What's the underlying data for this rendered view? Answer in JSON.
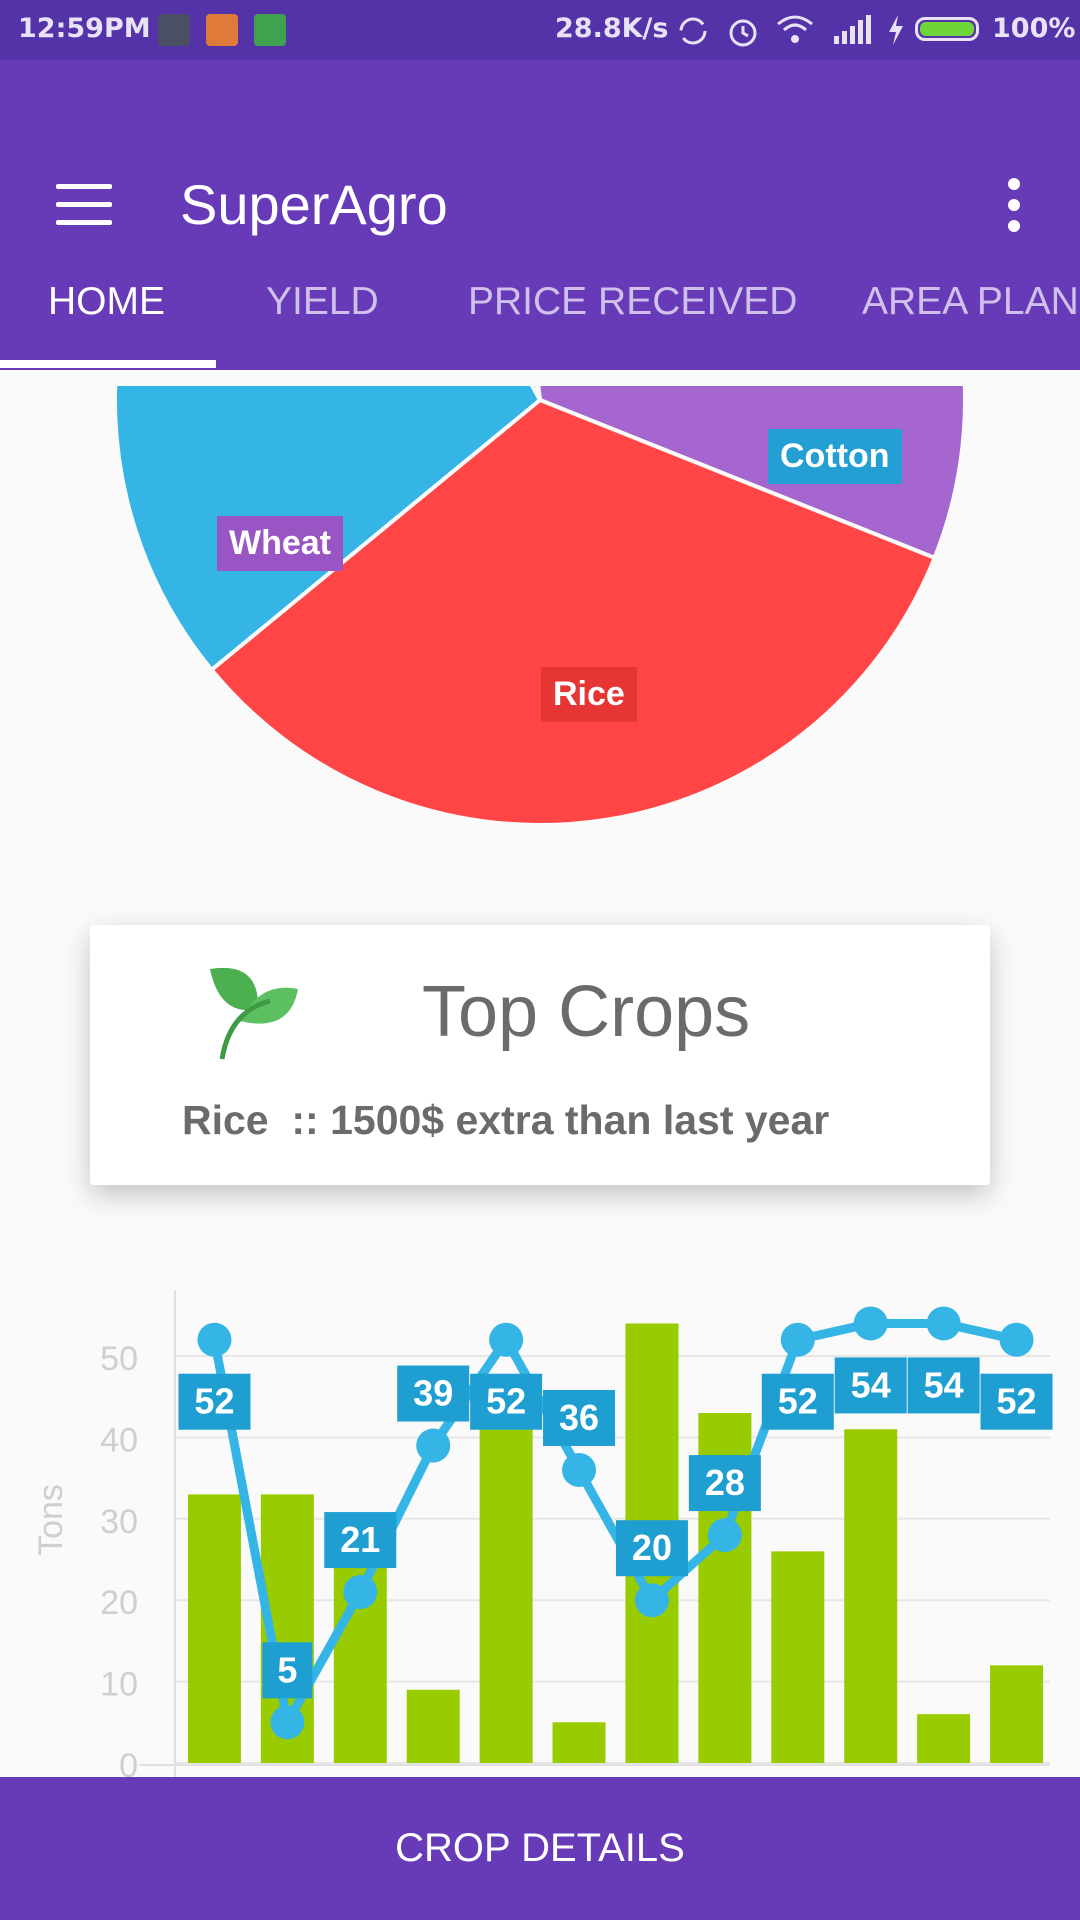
{
  "status_bar": {
    "time": "12:59PM",
    "speed": "28.8K/s",
    "battery": "100%",
    "battery_level": 1.0
  },
  "app_bar": {
    "title": "SuperAgro",
    "menu_icon": "hamburger-menu-icon",
    "more_icon": "more-vert-icon"
  },
  "tabs": [
    {
      "label": "HOME",
      "active": true
    },
    {
      "label": "YIELD",
      "active": false
    },
    {
      "label": "PRICE RECEIVED",
      "active": false
    },
    {
      "label": "AREA PLAN",
      "active": false
    }
  ],
  "top_crops_card": {
    "title": "Top Crops",
    "text": "Rice  :: 1500$ extra than last year",
    "icon": "leaf-icon"
  },
  "colors": {
    "primary": "#673ab7",
    "status_bar": "#5433a8",
    "wheat": "#a567cf",
    "rice": "#ff4545",
    "cotton": "#35b5e5",
    "bar": "#99cc00",
    "line": "#35b5e5"
  },
  "chart_data": [
    {
      "type": "pie",
      "slices": [
        {
          "label": "Wheat",
          "value": 33
        },
        {
          "label": "Rice",
          "value": 33
        },
        {
          "label": "Cotton",
          "value": 28
        },
        {
          "label": "",
          "value": 5
        },
        {
          "label": "",
          "value": 1
        }
      ]
    },
    {
      "type": "bar+line",
      "ylabel": "Tons",
      "ylim": [
        0,
        55
      ],
      "yticks": [
        0,
        10,
        20,
        30,
        40,
        50
      ],
      "grid": true,
      "bars": [
        33,
        33,
        26,
        9,
        42,
        5,
        54,
        43,
        26,
        41,
        6,
        12
      ],
      "line": [
        52,
        5,
        21,
        39,
        52,
        36,
        20,
        28,
        52,
        54,
        54,
        52
      ]
    }
  ],
  "bottom_button": {
    "label": "CROP DETAILS"
  }
}
